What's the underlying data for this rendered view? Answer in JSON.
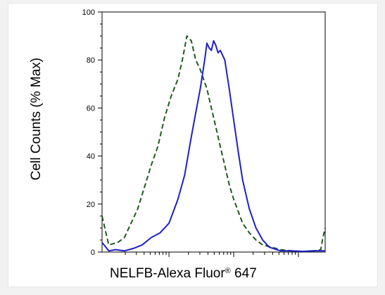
{
  "chart_data": {
    "type": "line",
    "xlabel_parts": [
      "NELFB-Alexa Fluor",
      "®",
      " 647"
    ],
    "ylabel": "Cell Counts (% Max)",
    "ylim": [
      0,
      100
    ],
    "y_ticks": [
      "0",
      "20",
      "40",
      "60",
      "80",
      "100"
    ],
    "x_scale": "log",
    "x_minor_ticks_per_decade": 9,
    "grid": false,
    "colors": {
      "sample": "#1f1fcc",
      "control": "#1f5a1f"
    },
    "series": [
      {
        "style": "dashed",
        "color": "#1f5a1f",
        "x": [
          0.0,
          0.03,
          0.07,
          0.1,
          0.13,
          0.16,
          0.19,
          0.22,
          0.25,
          0.28,
          0.31,
          0.34,
          0.36,
          0.38,
          0.4,
          0.42,
          0.44,
          0.455,
          0.47,
          0.49,
          0.51,
          0.53,
          0.55,
          0.57,
          0.59,
          0.61,
          0.63,
          0.66,
          0.69,
          0.72,
          0.76,
          0.8,
          0.85,
          0.9,
          0.95,
          0.98,
          0.99,
          1.0
        ],
        "y": [
          15,
          3,
          4,
          6,
          12,
          18,
          27,
          36,
          44,
          56,
          65,
          72,
          80,
          90,
          88,
          80,
          76,
          72,
          68,
          60,
          52,
          44,
          36,
          28,
          22,
          17,
          12,
          8,
          5,
          3,
          2,
          1,
          0.5,
          0.2,
          0.5,
          1,
          6,
          10
        ]
      },
      {
        "style": "solid",
        "color": "#1f1fcc",
        "x": [
          0.0,
          0.03,
          0.06,
          0.1,
          0.14,
          0.18,
          0.22,
          0.26,
          0.3,
          0.34,
          0.37,
          0.4,
          0.42,
          0.44,
          0.46,
          0.47,
          0.48,
          0.49,
          0.5,
          0.51,
          0.52,
          0.53,
          0.55,
          0.57,
          0.59,
          0.61,
          0.63,
          0.66,
          0.69,
          0.72,
          0.75,
          0.8,
          0.85,
          0.9,
          0.95,
          1.0
        ],
        "y": [
          4,
          0.5,
          1,
          0.5,
          1.5,
          3,
          6,
          8,
          12,
          22,
          32,
          48,
          58,
          68,
          80,
          87,
          85,
          84,
          88,
          86,
          83,
          84,
          80,
          68,
          55,
          42,
          30,
          18,
          10,
          5,
          2,
          0.5,
          0.5,
          0.3,
          0.5,
          0.5
        ]
      }
    ]
  }
}
